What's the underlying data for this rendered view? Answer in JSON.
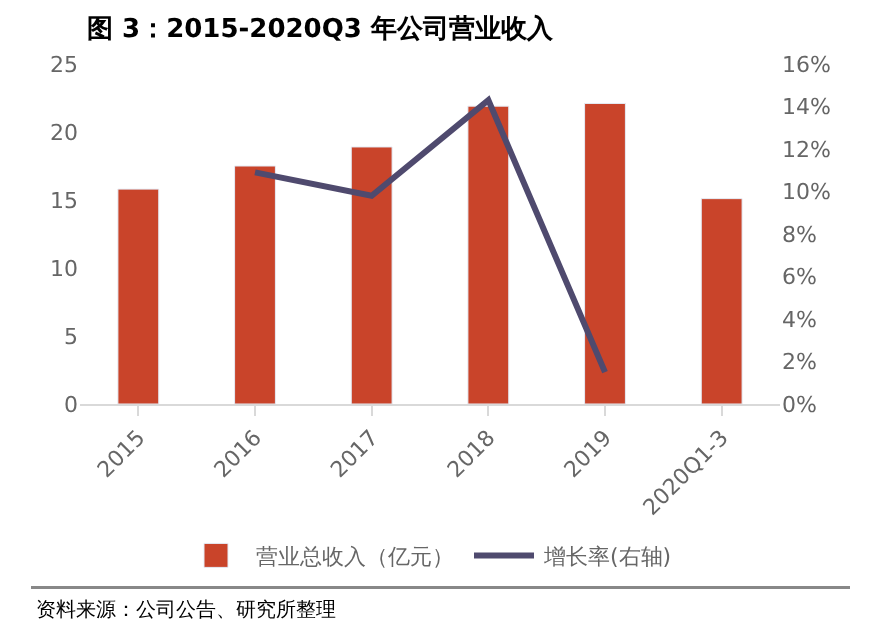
{
  "chart_data": {
    "type": "bar",
    "title": "图 3：2015-2020Q3 年公司营业收入",
    "categories": [
      "2015",
      "2016",
      "2017",
      "2018",
      "2019",
      "2020Q1-3"
    ],
    "series": [
      {
        "name": "营业总收入（亿元）",
        "color": "#c9442a",
        "values": [
          15.8,
          17.5,
          18.9,
          21.9,
          22.1,
          15.1
        ]
      },
      {
        "name": "增长率(右轴)",
        "type": "line",
        "axis": "y2",
        "color": "#4f4a6e",
        "values": [
          null,
          10.9,
          9.8,
          14.3,
          1.5,
          null
        ]
      }
    ],
    "ylim": [
      0,
      25
    ],
    "yticks": [
      0,
      5,
      10,
      15,
      20,
      25
    ],
    "y2lim": [
      0,
      16
    ],
    "y2ticks": [
      {
        "value": 0,
        "label": "0%"
      },
      {
        "value": 2,
        "label": "2%"
      },
      {
        "value": 4,
        "label": "4%"
      },
      {
        "value": 6,
        "label": "6%"
      },
      {
        "value": 8,
        "label": "8%"
      },
      {
        "value": 10,
        "label": "10%"
      },
      {
        "value": 12,
        "label": "12%"
      },
      {
        "value": 14,
        "label": "14%"
      },
      {
        "value": 16,
        "label": "16%"
      }
    ],
    "legend": "bottom",
    "marker": "none",
    "line_style": "solid",
    "annotations": [
      "资料来源：公司公告、研究所整理"
    ]
  }
}
